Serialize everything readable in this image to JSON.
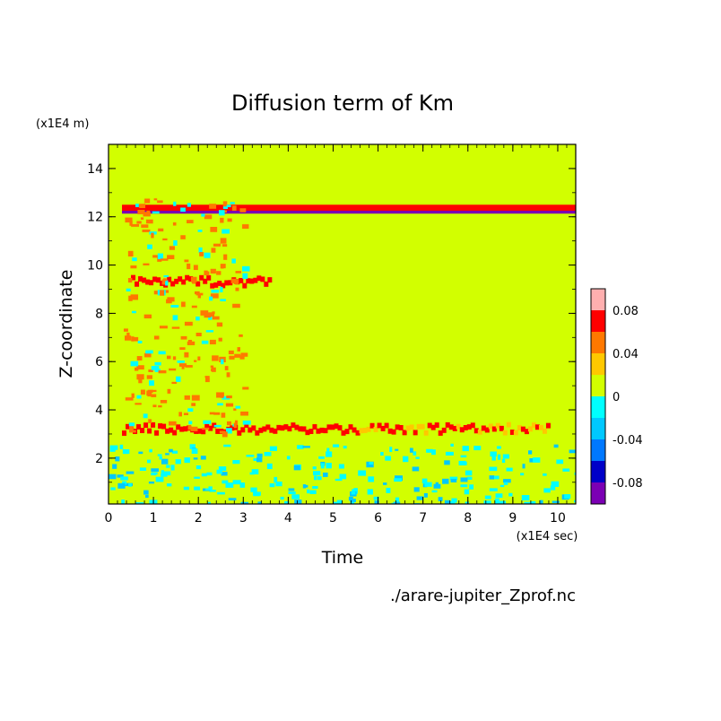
{
  "chart_data": {
    "type": "heatmap",
    "title": "Diffusion term of Km",
    "xlabel": "Time",
    "ylabel": "Z-coordinate",
    "x_unit": "(x1E4 sec)",
    "y_unit": "(x1E4 m)",
    "source_file": "./arare-jupiter_Zprof.nc",
    "xlim": [
      0,
      10.4
    ],
    "ylim": [
      0.1,
      15
    ],
    "x_ticks": [
      "0",
      "1",
      "2",
      "3",
      "4",
      "5",
      "6",
      "7",
      "8",
      "9",
      "10"
    ],
    "y_ticks": [
      "2",
      "4",
      "6",
      "8",
      "10",
      "12",
      "14"
    ],
    "colorbar": {
      "ticks": [
        "0.08",
        "0.04",
        "0",
        "-0.04",
        "-0.08"
      ],
      "levels": [
        {
          "min": -0.1,
          "max": -0.08,
          "color": "#7b00b4"
        },
        {
          "min": -0.08,
          "max": -0.06,
          "color": "#0000c8"
        },
        {
          "min": -0.06,
          "max": -0.04,
          "color": "#0078ff"
        },
        {
          "min": -0.04,
          "max": -0.02,
          "color": "#00c8ff"
        },
        {
          "min": -0.02,
          "max": 0.0,
          "color": "#00ffff"
        },
        {
          "min": 0.0,
          "max": 0.02,
          "color": "#d2ff00"
        },
        {
          "min": 0.02,
          "max": 0.04,
          "color": "#ffc800"
        },
        {
          "min": 0.04,
          "max": 0.06,
          "color": "#ff7800"
        },
        {
          "min": 0.06,
          "max": 0.08,
          "color": "#ff0000"
        },
        {
          "min": 0.08,
          "max": 0.1,
          "color": "#ffafaf"
        }
      ]
    },
    "background_level": 0.01,
    "features": [
      {
        "kind": "dipole_band",
        "z": 12.25,
        "t_start": 0.3,
        "t_end": 10.4,
        "positive_value": 0.07,
        "negative_value": -0.09
      },
      {
        "kind": "band",
        "z": 3.2,
        "t_start": 0.3,
        "t_end": 9.8,
        "value": 0.07,
        "fade_value": 0.03
      },
      {
        "kind": "band",
        "z": 9.3,
        "t_start": 0.5,
        "t_end": 3.6,
        "value": 0.07
      },
      {
        "kind": "noise_region",
        "t_start": 0.3,
        "t_end": 3.0,
        "z_start": 3.0,
        "z_end": 12.8,
        "value": 0.05
      },
      {
        "kind": "noise_region",
        "t_start": 0.0,
        "t_end": 10.4,
        "z_start": 0.1,
        "z_end": 2.6,
        "value": -0.01
      }
    ]
  }
}
